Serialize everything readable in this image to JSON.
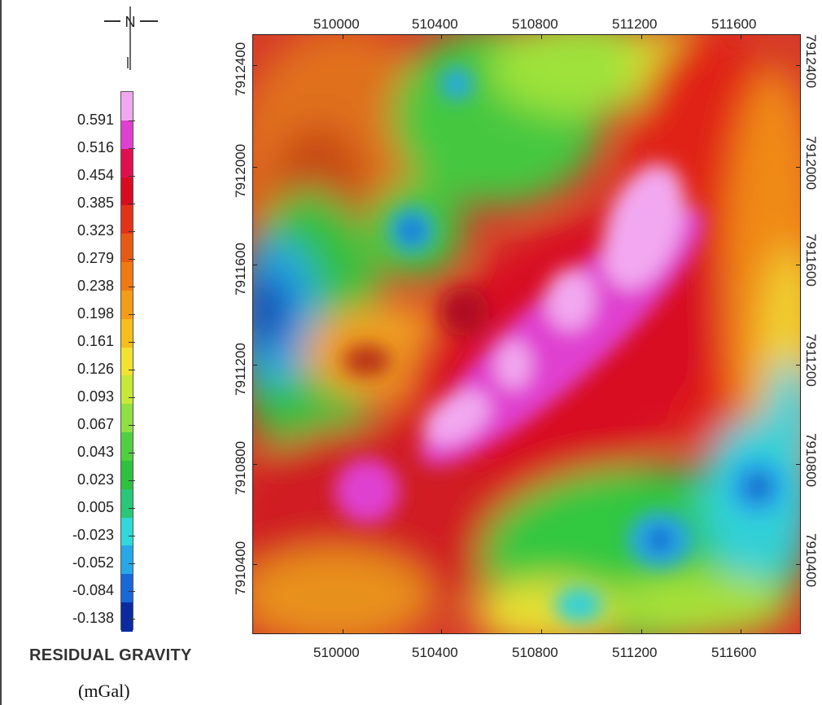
{
  "north_arrow": {
    "label": "N"
  },
  "legend": {
    "title": "RESIDUAL GRAVITY",
    "unit": "(mGal)",
    "values": [
      "0.591",
      "0.516",
      "0.454",
      "0.385",
      "0.323",
      "0.279",
      "0.238",
      "0.198",
      "0.161",
      "0.126",
      "0.093",
      "0.067",
      "0.043",
      "0.023",
      "0.005",
      "-0.023",
      "-0.052",
      "-0.084",
      "-0.138"
    ],
    "colors": [
      "#f0a8f0",
      "#e040d0",
      "#e01050",
      "#d80c20",
      "#e23318",
      "#e85a14",
      "#ef7a14",
      "#f39c18",
      "#f5be1c",
      "#f1e230",
      "#c8e838",
      "#8fe040",
      "#50d040",
      "#30c040",
      "#28c878",
      "#30d8d8",
      "#28a8e8",
      "#1868d8",
      "#0c2aa0"
    ]
  },
  "map": {
    "x_axis": {
      "ticks": [
        "510000",
        "510400",
        "510800",
        "511200",
        "511600"
      ]
    },
    "y_axis": {
      "ticks": [
        "7912400",
        "7912000",
        "7911600",
        "7911200",
        "7910800",
        "7910400"
      ]
    }
  }
}
